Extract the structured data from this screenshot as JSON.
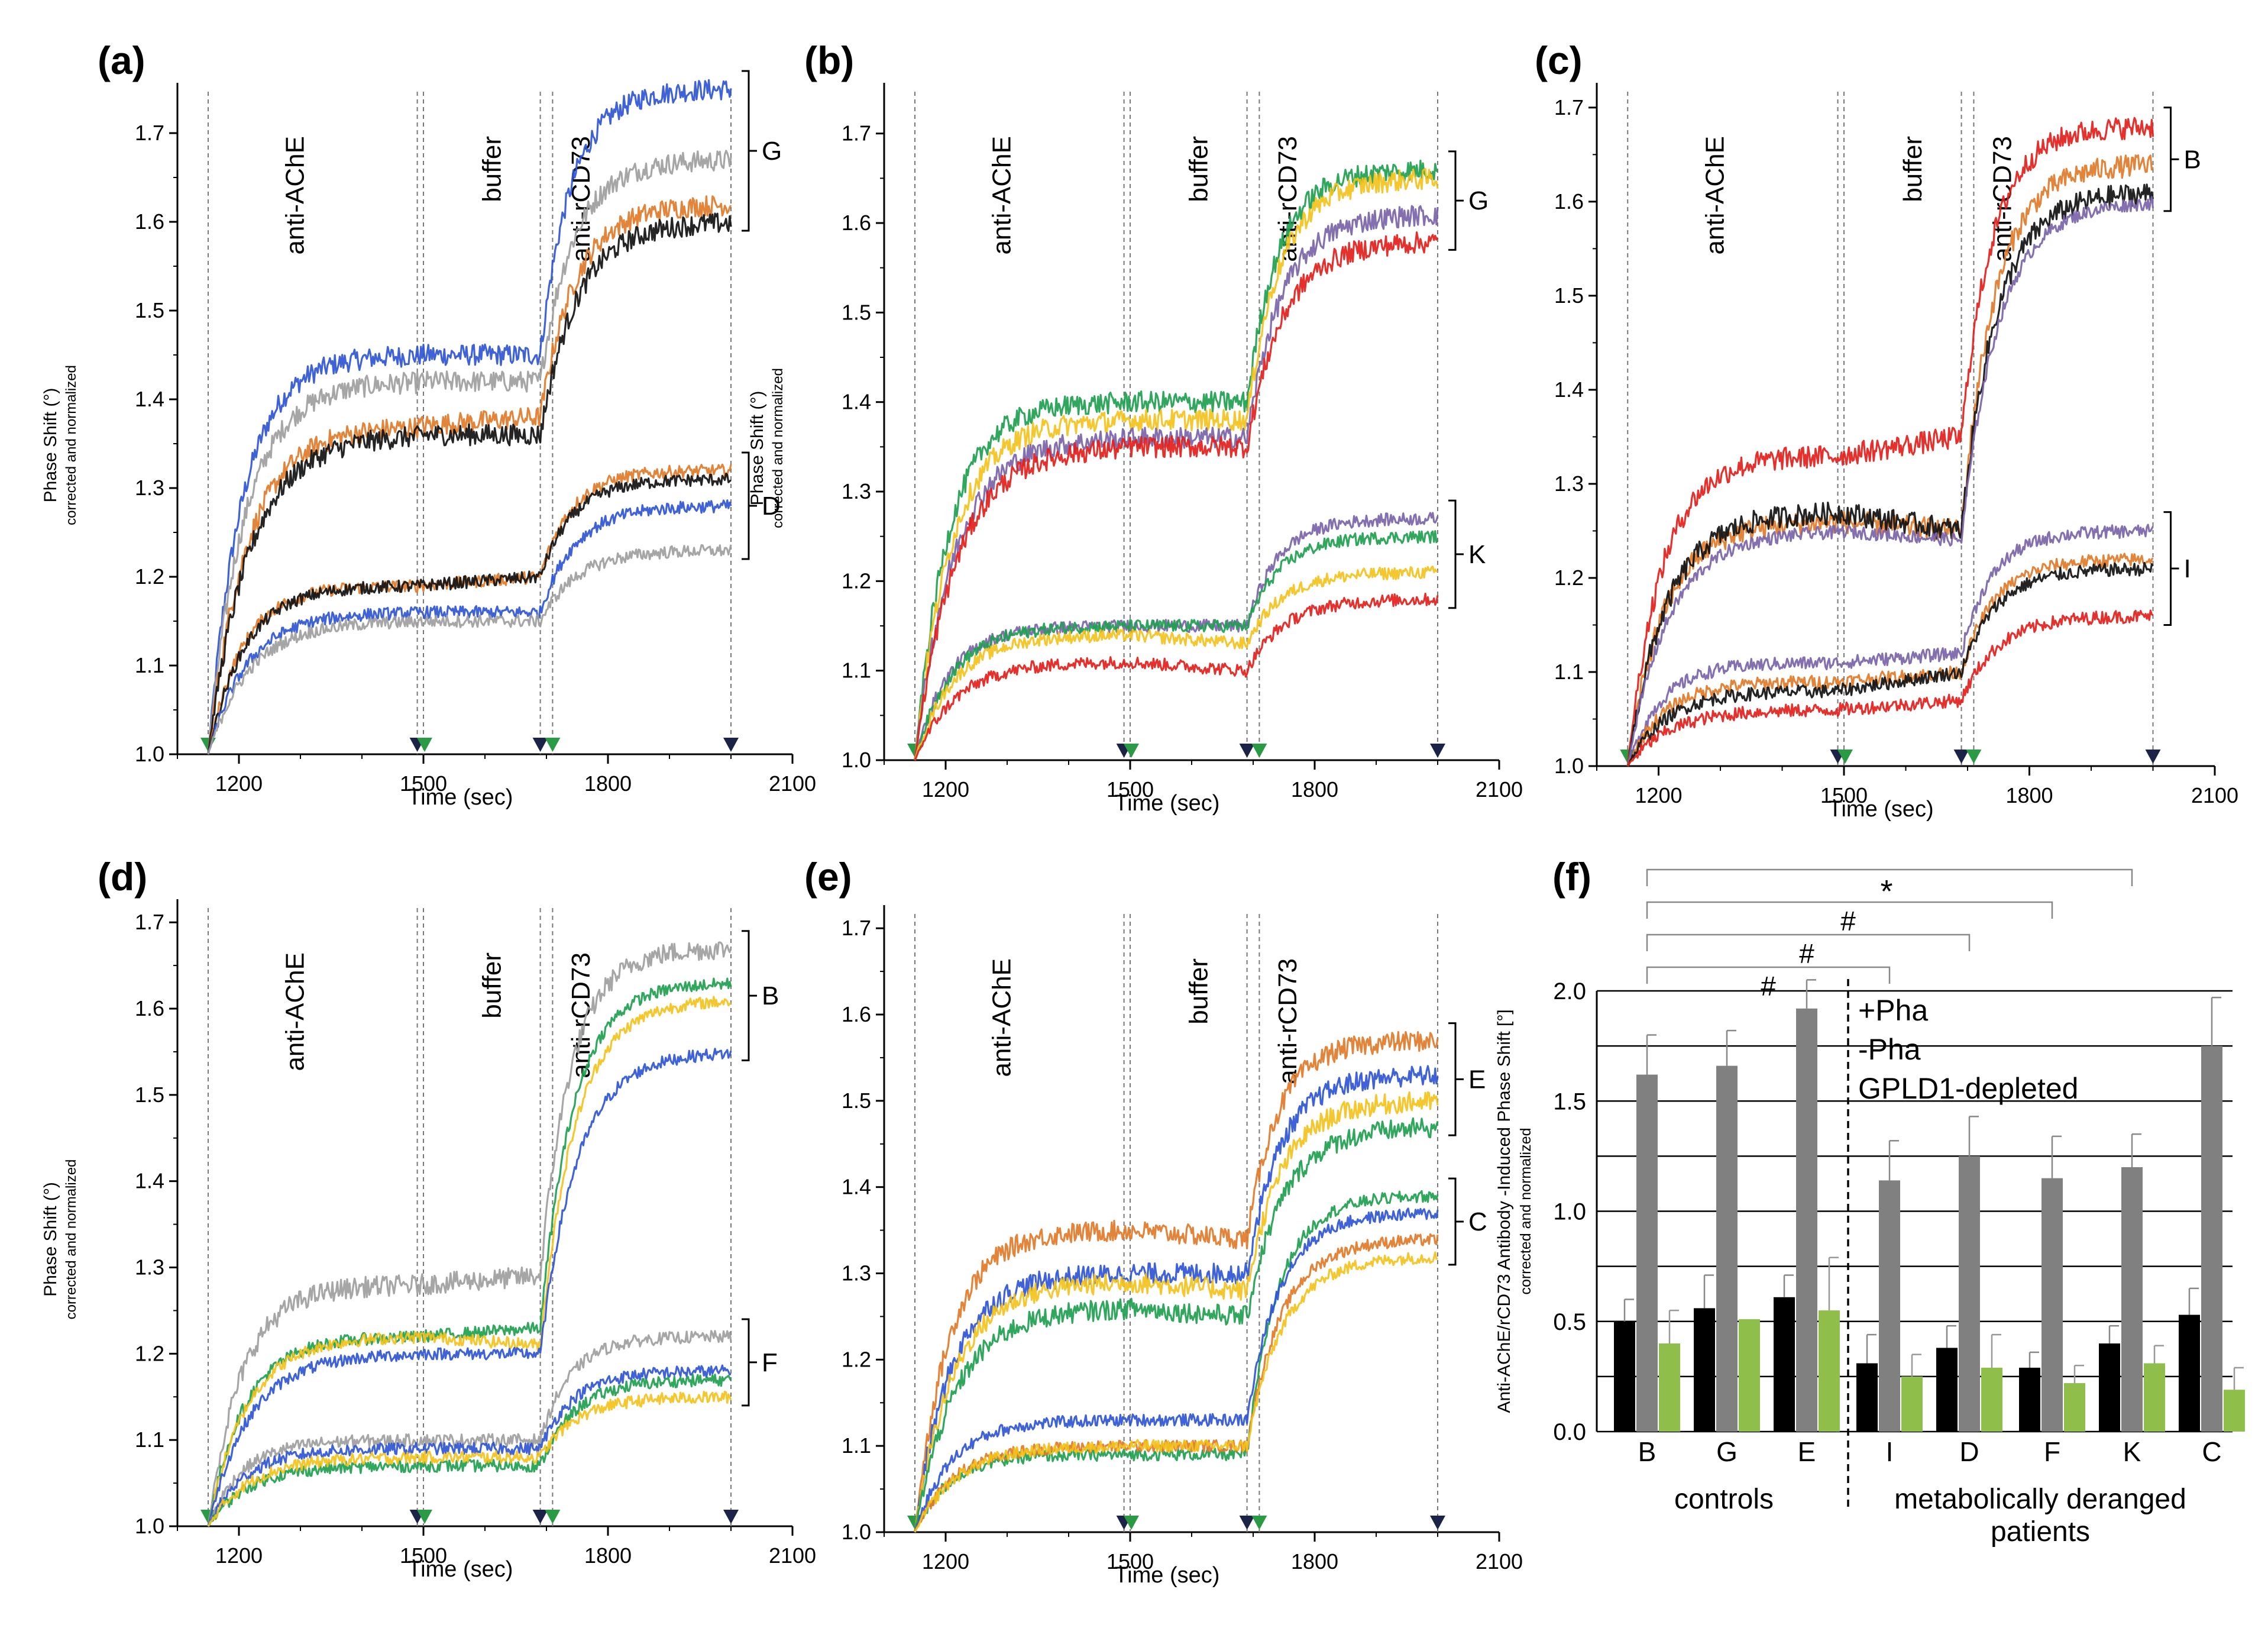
{
  "figure": {
    "common": {
      "ylabel": "Phase Shift (°)",
      "ylabel_sub": "corrected and normalized",
      "xlabel": "Time (sec)",
      "xticks": [
        "1200",
        "1500",
        "1800",
        "2100"
      ],
      "yticks": [
        "1.0",
        "1.1",
        "1.2",
        "1.3",
        "1.4",
        "1.5",
        "1.6",
        "1.7"
      ],
      "phases": [
        "anti-AChE",
        "buffer",
        "anti-rCD73"
      ]
    },
    "colors": {
      "blue": "#2f55d4",
      "gray": "#9e9e9e",
      "orange": "#e07b2a",
      "black": "#111111",
      "green": "#1fa050",
      "yellow": "#f2c21b",
      "purple": "#7b64a8",
      "red": "#e3201b",
      "bar_plus": "#808080",
      "bar_minus": "#8fbf4a",
      "bar_gpld": "#000000",
      "arrow_green": "#2a9a45",
      "arrow_navy": "#1b2447"
    }
  },
  "chart_data": [
    {
      "type": "line",
      "panel": "(a)",
      "xlabel": "Time (sec)",
      "ylabel": "Phase Shift (°)",
      "xlim": [
        1100,
        2100
      ],
      "ylim": [
        1.0,
        1.75
      ],
      "events": [
        1150,
        1490,
        1500,
        1690,
        1710,
        2000
      ],
      "groups": [
        {
          "label": "G",
          "series": [
            {
              "name": "blue",
              "color": "#2f55d4",
              "values": [
                1.0,
                1.45,
                1.45,
                1.75
              ]
            },
            {
              "name": "gray",
              "color": "#9e9e9e",
              "values": [
                1.0,
                1.42,
                1.42,
                1.67
              ]
            },
            {
              "name": "orange",
              "color": "#e07b2a",
              "values": [
                1.0,
                1.37,
                1.38,
                1.62
              ]
            },
            {
              "name": "black",
              "color": "#111111",
              "values": [
                1.0,
                1.36,
                1.36,
                1.6
              ]
            }
          ]
        },
        {
          "label": "D",
          "series": [
            {
              "name": "orange",
              "color": "#e07b2a",
              "values": [
                1.0,
                1.19,
                1.2,
                1.32
              ]
            },
            {
              "name": "black",
              "color": "#111111",
              "values": [
                1.0,
                1.19,
                1.2,
                1.31
              ]
            },
            {
              "name": "blue",
              "color": "#2f55d4",
              "values": [
                1.0,
                1.16,
                1.16,
                1.28
              ]
            },
            {
              "name": "gray",
              "color": "#9e9e9e",
              "values": [
                1.0,
                1.15,
                1.15,
                1.23
              ]
            }
          ]
        }
      ]
    },
    {
      "type": "line",
      "panel": "(b)",
      "xlabel": "Time (sec)",
      "ylabel": "Phase Shift (°)",
      "xlim": [
        1100,
        2100
      ],
      "ylim": [
        1.0,
        1.75
      ],
      "events": [
        1150,
        1490,
        1500,
        1690,
        1710,
        2000
      ],
      "groups": [
        {
          "label": "G",
          "series": [
            {
              "name": "green",
              "color": "#1fa050",
              "values": [
                1.0,
                1.4,
                1.4,
                1.66
              ]
            },
            {
              "name": "yellow",
              "color": "#f2c21b",
              "values": [
                1.0,
                1.38,
                1.38,
                1.65
              ]
            },
            {
              "name": "purple",
              "color": "#7b64a8",
              "values": [
                1.0,
                1.36,
                1.36,
                1.61
              ]
            },
            {
              "name": "red",
              "color": "#e3201b",
              "values": [
                1.0,
                1.35,
                1.35,
                1.58
              ]
            }
          ]
        },
        {
          "label": "K",
          "series": [
            {
              "name": "purple",
              "color": "#7b64a8",
              "values": [
                1.0,
                1.15,
                1.15,
                1.27
              ]
            },
            {
              "name": "green",
              "color": "#1fa050",
              "values": [
                1.0,
                1.15,
                1.15,
                1.25
              ]
            },
            {
              "name": "yellow",
              "color": "#f2c21b",
              "values": [
                1.0,
                1.14,
                1.13,
                1.21
              ]
            },
            {
              "name": "red",
              "color": "#e3201b",
              "values": [
                1.0,
                1.11,
                1.1,
                1.18
              ]
            }
          ]
        }
      ]
    },
    {
      "type": "line",
      "panel": "(c)",
      "xlabel": "Time (sec)",
      "ylabel": "",
      "xlim": [
        1100,
        2100
      ],
      "ylim": [
        1.0,
        1.72
      ],
      "events": [
        1150,
        1490,
        1500,
        1690,
        1710,
        2000
      ],
      "groups": [
        {
          "label": "B",
          "series": [
            {
              "name": "red",
              "color": "#e3201b",
              "values": [
                1.0,
                1.33,
                1.35,
                1.68
              ]
            },
            {
              "name": "orange",
              "color": "#e07b2a",
              "values": [
                1.0,
                1.26,
                1.25,
                1.64
              ]
            },
            {
              "name": "black",
              "color": "#111111",
              "values": [
                1.0,
                1.27,
                1.25,
                1.61
              ]
            },
            {
              "name": "purple",
              "color": "#7b64a8",
              "values": [
                1.0,
                1.25,
                1.24,
                1.6
              ]
            }
          ]
        },
        {
          "label": "I",
          "series": [
            {
              "name": "purple",
              "color": "#7b64a8",
              "values": [
                1.0,
                1.11,
                1.12,
                1.25
              ]
            },
            {
              "name": "orange",
              "color": "#e07b2a",
              "values": [
                1.0,
                1.09,
                1.1,
                1.22
              ]
            },
            {
              "name": "black",
              "color": "#111111",
              "values": [
                1.0,
                1.08,
                1.1,
                1.21
              ]
            },
            {
              "name": "red",
              "color": "#e3201b",
              "values": [
                1.0,
                1.06,
                1.07,
                1.16
              ]
            }
          ]
        }
      ]
    },
    {
      "type": "line",
      "panel": "(d)",
      "xlabel": "Time (sec)",
      "ylabel": "Phase Shift (°)",
      "xlim": [
        1100,
        2100
      ],
      "ylim": [
        1.0,
        1.72
      ],
      "events": [
        1150,
        1490,
        1500,
        1690,
        1710,
        2000
      ],
      "groups": [
        {
          "label": "B",
          "series": [
            {
              "name": "gray",
              "color": "#9e9e9e",
              "values": [
                1.0,
                1.28,
                1.29,
                1.67
              ]
            },
            {
              "name": "green",
              "color": "#1fa050",
              "values": [
                1.0,
                1.22,
                1.23,
                1.63
              ]
            },
            {
              "name": "yellow",
              "color": "#f2c21b",
              "values": [
                1.0,
                1.22,
                1.21,
                1.61
              ]
            },
            {
              "name": "blue",
              "color": "#2f55d4",
              "values": [
                1.0,
                1.2,
                1.2,
                1.55
              ]
            }
          ]
        },
        {
          "label": "F",
          "series": [
            {
              "name": "gray",
              "color": "#9e9e9e",
              "values": [
                1.0,
                1.1,
                1.1,
                1.22
              ]
            },
            {
              "name": "blue",
              "color": "#2f55d4",
              "values": [
                1.0,
                1.09,
                1.09,
                1.18
              ]
            },
            {
              "name": "green",
              "color": "#1fa050",
              "values": [
                1.0,
                1.07,
                1.07,
                1.17
              ]
            },
            {
              "name": "yellow",
              "color": "#f2c21b",
              "values": [
                1.0,
                1.08,
                1.08,
                1.15
              ]
            }
          ]
        }
      ]
    },
    {
      "type": "line",
      "panel": "(e)",
      "xlabel": "Time (sec)",
      "ylabel": "",
      "xlim": [
        1100,
        2100
      ],
      "ylim": [
        1.0,
        1.72
      ],
      "events": [
        1150,
        1490,
        1500,
        1690,
        1710,
        2000
      ],
      "groups": [
        {
          "label": "E",
          "series": [
            {
              "name": "orange",
              "color": "#e07b2a",
              "values": [
                1.0,
                1.35,
                1.34,
                1.57
              ]
            },
            {
              "name": "blue",
              "color": "#2f55d4",
              "values": [
                1.0,
                1.3,
                1.3,
                1.53
              ]
            },
            {
              "name": "yellow",
              "color": "#f2c21b",
              "values": [
                1.0,
                1.29,
                1.28,
                1.5
              ]
            },
            {
              "name": "green",
              "color": "#1fa050",
              "values": [
                1.0,
                1.26,
                1.25,
                1.47
              ]
            }
          ]
        },
        {
          "label": "C",
          "series": [
            {
              "name": "green",
              "color": "#1fa050",
              "values": [
                1.0,
                1.09,
                1.09,
                1.39
              ]
            },
            {
              "name": "blue",
              "color": "#2f55d4",
              "values": [
                1.0,
                1.13,
                1.13,
                1.37
              ]
            },
            {
              "name": "orange",
              "color": "#e07b2a",
              "values": [
                1.0,
                1.1,
                1.1,
                1.34
              ]
            },
            {
              "name": "yellow",
              "color": "#f2c21b",
              "values": [
                1.0,
                1.1,
                1.1,
                1.32
              ]
            }
          ]
        }
      ]
    },
    {
      "type": "bar",
      "panel": "(f)",
      "ylabel": "Anti-AChE/rCD73 Antibody -Induced Phase Shift [°]",
      "ylabel_sub": "corrected and normalized",
      "ylim": [
        0.0,
        2.0
      ],
      "yticks": [
        "0.0",
        "0.5",
        "1.0",
        "1.5",
        "2.0"
      ],
      "categories": [
        "B",
        "G",
        "E",
        "I",
        "D",
        "F",
        "K",
        "C"
      ],
      "group_labels": [
        "controls",
        "metabolically deranged",
        "patients"
      ],
      "legend": [
        "+Pha",
        "-Pha",
        "GPLD1-depleted"
      ],
      "series": [
        {
          "name": "GPLD1-depleted",
          "color": "#000000",
          "values": [
            0.5,
            0.56,
            0.61,
            0.31,
            0.38,
            0.29,
            0.4,
            0.53
          ],
          "errors": [
            0.1,
            0.15,
            0.1,
            0.13,
            0.1,
            0.07,
            0.08,
            0.12
          ]
        },
        {
          "name": "+Pha",
          "color": "#808080",
          "values": [
            1.62,
            1.66,
            1.92,
            1.14,
            1.25,
            1.15,
            1.2,
            1.75
          ],
          "errors": [
            0.18,
            0.16,
            0.13,
            0.18,
            0.18,
            0.19,
            0.15,
            0.22
          ]
        },
        {
          "name": "-Pha",
          "color": "#8fbf4a",
          "values": [
            0.4,
            0.51,
            0.55,
            0.25,
            0.29,
            0.22,
            0.31,
            0.19
          ],
          "errors": [
            0.15,
            0.0,
            0.24,
            0.1,
            0.15,
            0.08,
            0.08,
            0.1
          ]
        }
      ],
      "significance": [
        "*",
        "#",
        "#",
        "#"
      ]
    }
  ]
}
